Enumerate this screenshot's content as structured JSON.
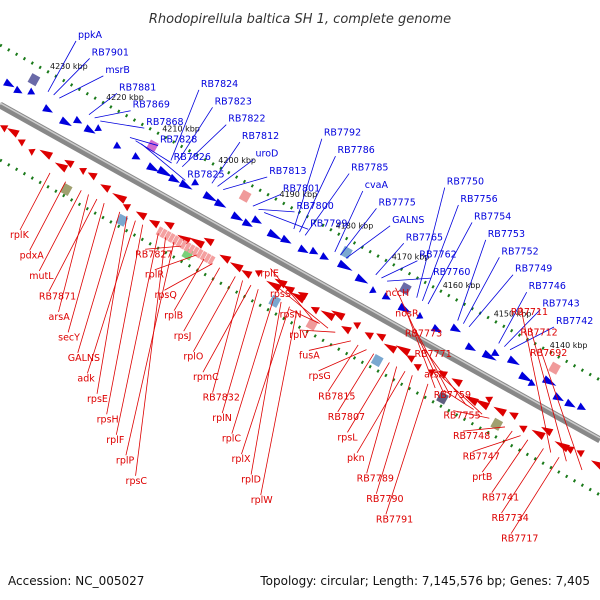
{
  "title": "Rhodopirellula baltica SH 1, complete genome",
  "footer": {
    "accession": "Accession: NC_005027",
    "topology": "Topology: circular; Length: 7,145,576 bp; Genes: 7,405"
  },
  "colors": {
    "forward": "#0000dd",
    "reverse": "#dd0000",
    "backbone": "#888888",
    "ticks": "#1a7a1a"
  },
  "ruler": [
    {
      "label": "4230 kbp",
      "pos": 0.0
    },
    {
      "label": "4220 kbp",
      "pos": 0.11
    },
    {
      "label": "4210 kbp",
      "pos": 0.22
    },
    {
      "label": "4200 kbp",
      "pos": 0.33
    },
    {
      "label": "4190 kbp",
      "pos": 0.45
    },
    {
      "label": "4180 kbp",
      "pos": 0.56
    },
    {
      "label": "4170 kbp",
      "pos": 0.67
    },
    {
      "label": "4160 kbp",
      "pos": 0.77
    },
    {
      "label": "4150 kbp",
      "pos": 0.87
    },
    {
      "label": "4140 kbp",
      "pos": 0.98
    }
  ],
  "forward_genes": [
    {
      "label": "ppkA"
    },
    {
      "label": "RB7901"
    },
    {
      "label": "msrB"
    },
    {
      "label": "RB7881"
    },
    {
      "label": "RB7869"
    },
    {
      "label": "RB7868"
    },
    {
      "label": "RB7828"
    },
    {
      "label": "RB7826"
    },
    {
      "label": "RB7825"
    },
    {
      "label": "RB7824"
    },
    {
      "label": "RB7823"
    },
    {
      "label": "RB7822"
    },
    {
      "label": "RB7812"
    },
    {
      "label": "uroD"
    },
    {
      "label": "RB7813"
    },
    {
      "label": "RB7801"
    },
    {
      "label": "RB7800"
    },
    {
      "label": "RB7799"
    },
    {
      "label": "RB7792"
    },
    {
      "label": "RB7786"
    },
    {
      "label": "RB7785"
    },
    {
      "label": "cvaA"
    },
    {
      "label": "RB7775"
    },
    {
      "label": "GALNS"
    },
    {
      "label": "RB7765"
    },
    {
      "label": "RB7762"
    },
    {
      "label": "RB7760"
    },
    {
      "label": "RB7750"
    },
    {
      "label": "RB7756"
    },
    {
      "label": "RB7754"
    },
    {
      "label": "RB7753"
    },
    {
      "label": "RB7752"
    },
    {
      "label": "RB7749"
    },
    {
      "label": "RB7746"
    },
    {
      "label": "RB7743"
    },
    {
      "label": "RB7742"
    }
  ],
  "reverse_genes": [
    {
      "label": "rplK"
    },
    {
      "label": "pdxA"
    },
    {
      "label": "mutL"
    },
    {
      "label": "RB7871"
    },
    {
      "label": "arsA"
    },
    {
      "label": "secY"
    },
    {
      "label": "GALNS"
    },
    {
      "label": "adk"
    },
    {
      "label": "rpsE"
    },
    {
      "label": "rpsH"
    },
    {
      "label": "rplF"
    },
    {
      "label": "rplP"
    },
    {
      "label": "rpsC"
    },
    {
      "label": "RB7827"
    },
    {
      "label": "rplR"
    },
    {
      "label": "rpsQ"
    },
    {
      "label": "rplB"
    },
    {
      "label": "rpsJ"
    },
    {
      "label": "rplO"
    },
    {
      "label": "rpmC"
    },
    {
      "label": "RB7832"
    },
    {
      "label": "rplN"
    },
    {
      "label": "rplC"
    },
    {
      "label": "rplX"
    },
    {
      "label": "rplD"
    },
    {
      "label": "rplW"
    },
    {
      "label": "rplE"
    },
    {
      "label": "rpsS"
    },
    {
      "label": "rpsN"
    },
    {
      "label": "rplV"
    },
    {
      "label": "fusA"
    },
    {
      "label": "rpsG"
    },
    {
      "label": "RB7815"
    },
    {
      "label": "RB7807"
    },
    {
      "label": "rpsL"
    },
    {
      "label": "pkn"
    },
    {
      "label": "RB7789"
    },
    {
      "label": "RB7790"
    },
    {
      "label": "RB7791"
    },
    {
      "label": "nccH"
    },
    {
      "label": "nosR"
    },
    {
      "label": "RB7773"
    },
    {
      "label": "RB7771"
    },
    {
      "label": "atsA"
    },
    {
      "label": "RB7759"
    },
    {
      "label": "RB7755"
    },
    {
      "label": "RB7748"
    },
    {
      "label": "RB7747"
    },
    {
      "label": "prtB"
    },
    {
      "label": "RB7741"
    },
    {
      "label": "RB7734"
    },
    {
      "label": "RB7717"
    },
    {
      "label": "RB7711"
    },
    {
      "label": "RB7712"
    },
    {
      "label": "RB7692"
    }
  ]
}
